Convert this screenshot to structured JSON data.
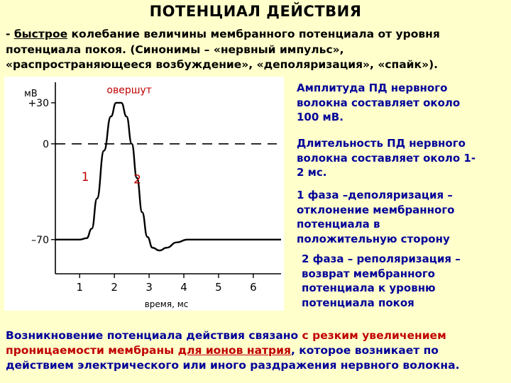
{
  "title": "ПОТЕНЦИАЛ ДЕЙСТВИЯ",
  "intro": {
    "dash": "- ",
    "keyword": "быстрое",
    "line1_rest": " колебание величины мембранного потенциала от уровня",
    "line2": "потенциала покоя. (Синонимы – «нервный импульс»,",
    "line3": "«распространяющееся возбуждение», «деполяризация», «спайк»)."
  },
  "chart_data": {
    "type": "line",
    "title": "",
    "xlabel": "время, мс",
    "ylabel": "мВ",
    "x_ticks": [
      "1",
      "2",
      "3",
      "4",
      "5",
      "6"
    ],
    "y_ticks": [
      "+30",
      "0",
      "–70"
    ],
    "xlim": [
      0.3,
      6.8
    ],
    "ylim": [
      -95,
      45
    ],
    "series": [
      {
        "x": [
          0.3,
          1.0,
          1.2,
          1.35,
          1.5,
          1.7,
          1.9,
          2.05,
          2.2,
          2.35,
          2.5,
          2.65,
          2.8,
          2.95,
          3.1,
          3.3,
          3.5,
          3.8,
          4.1,
          4.5,
          6.8
        ],
        "y": [
          -70,
          -70,
          -69,
          -62,
          -40,
          -5,
          20,
          30,
          30,
          20,
          0,
          -25,
          -50,
          -68,
          -76,
          -78,
          -76,
          -72,
          -70,
          -70,
          -70
        ]
      }
    ],
    "annotations": {
      "overshoot": "овершут",
      "phase1": "1",
      "phase2": "2"
    }
  },
  "side": {
    "amplitude": [
      "Амплитуда ПД нервного",
      "волокна составляет около",
      "100 мВ."
    ],
    "duration": [
      "Длительность ПД нервного",
      "волокна составляет около 1-",
      "2 мс."
    ],
    "phase1": [
      "1 фаза –деполяризация –",
      "отклонение мембранного",
      "потенциала в",
      "положительную сторону"
    ],
    "phase2": [
      "2 фаза – реполяризация –",
      "возврат мембранного",
      "потенциала к уровню",
      "потенциала покоя"
    ]
  },
  "footer": {
    "part1": "Возникновение потенциала действия связано ",
    "part2_red": "с резким увеличением",
    "line2_pre": "проницаемости мембраны ",
    "line2_u": "для ионов натрия",
    "line2_post": ", которое возникает по",
    "line3": "действием электрического или иного раздражения нервного волокна."
  },
  "colors": {
    "background": "#ffffcc",
    "blue_text": "#000099",
    "red_text": "#c00000"
  }
}
